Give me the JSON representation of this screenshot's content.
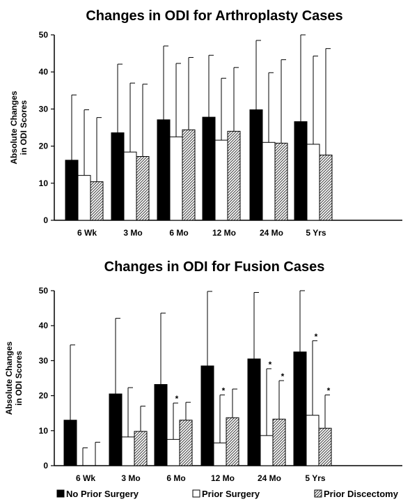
{
  "chart_data": [
    {
      "type": "bar",
      "title": "Changes in ODI for Arthroplasty Cases",
      "ylabel": "Absolute Changes in ODI Scores",
      "ylabel_lines": [
        "Absolute Changes",
        "in ODI Scores"
      ],
      "categories": [
        "6 Wk",
        "3 Mo",
        "6 Mo",
        "12 Mo",
        "24 Mo",
        "5 Yrs"
      ],
      "ylim": [
        0,
        50
      ],
      "yticks": [
        "0",
        "10",
        "20",
        "30",
        "40",
        "50"
      ],
      "series": [
        {
          "name": "No Prior Surgery",
          "values": [
            16.2,
            23.6,
            27.1,
            27.8,
            29.8,
            26.6
          ],
          "error_upper": [
            33.8,
            42.1,
            47.0,
            44.5,
            48.5,
            50.0
          ]
        },
        {
          "name": "Prior Surgery",
          "values": [
            12.1,
            18.4,
            22.5,
            21.6,
            21.0,
            20.5
          ],
          "error_upper": [
            29.8,
            37.0,
            42.3,
            38.3,
            39.8,
            44.3
          ]
        },
        {
          "name": "Prior Discectomy",
          "values": [
            10.4,
            17.2,
            24.4,
            24.0,
            20.8,
            17.6
          ],
          "error_upper": [
            27.7,
            36.7,
            43.9,
            41.2,
            43.3,
            46.3
          ]
        }
      ],
      "significance_markers": [],
      "grid": false
    },
    {
      "type": "bar",
      "title": "Changes in ODI for Fusion Cases",
      "ylabel": "Absolute Changes in ODI Scores",
      "ylabel_lines": [
        "Absolute Changes",
        "in ODI Scores"
      ],
      "categories": [
        "6 Wk",
        "3 Mo",
        "6 Mo",
        "12 Mo",
        "24 Mo",
        "5 Yrs"
      ],
      "ylim": [
        0,
        50
      ],
      "yticks": [
        "0",
        "10",
        "20",
        "30",
        "40",
        "50"
      ],
      "series": [
        {
          "name": "No Prior Surgery",
          "values": [
            13.0,
            20.5,
            23.2,
            28.5,
            30.5,
            32.5
          ],
          "error_upper": [
            34.5,
            42.1,
            43.6,
            49.8,
            49.5,
            50.0
          ]
        },
        {
          "name": "Prior Surgery",
          "values": [
            0.0,
            8.2,
            7.5,
            6.5,
            8.6,
            14.4
          ],
          "error_upper": [
            5.1,
            22.3,
            17.9,
            20.2,
            27.7,
            35.7
          ]
        },
        {
          "name": "Prior Discectomy",
          "values": [
            0.0,
            9.8,
            13.0,
            13.7,
            13.3,
            10.7
          ],
          "error_upper": [
            6.7,
            17.0,
            18.1,
            21.9,
            24.3,
            20.2
          ]
        }
      ],
      "significance_markers": [
        {
          "category": "6 Mo",
          "series": "Prior Surgery",
          "label": "*"
        },
        {
          "category": "12 Mo",
          "series": "Prior Surgery",
          "label": "*"
        },
        {
          "category": "24 Mo",
          "series": "Prior Surgery",
          "label": "*"
        },
        {
          "category": "24 Mo",
          "series": "Prior Discectomy",
          "label": "*"
        },
        {
          "category": "5 Yrs",
          "series": "Prior Surgery",
          "label": "*"
        },
        {
          "category": "5 Yrs",
          "series": "Prior Discectomy",
          "label": "*"
        }
      ],
      "grid": false
    }
  ],
  "legend": {
    "placement": "bottom",
    "items": [
      {
        "label": "No Prior Surgery",
        "fill": "solid-black"
      },
      {
        "label": "Prior Surgery",
        "fill": "white"
      },
      {
        "label": "Prior Discectomy",
        "fill": "diagonal-hatch"
      }
    ]
  },
  "colors": {
    "ink": "#000000",
    "background": "#ffffff",
    "hatch": "#555555"
  }
}
